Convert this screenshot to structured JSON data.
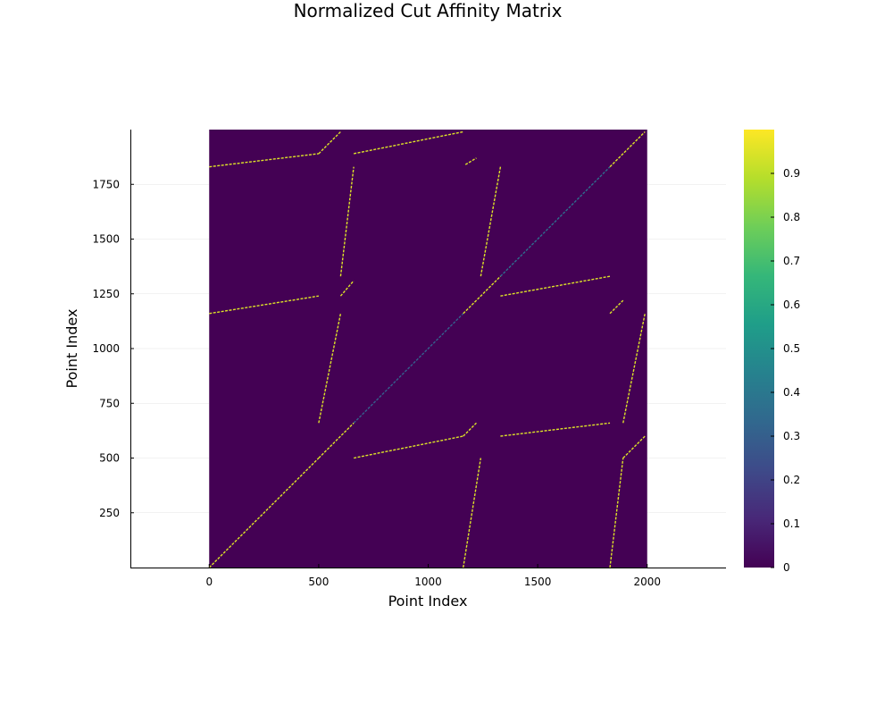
{
  "chart_data": {
    "type": "heatmap",
    "title": "Normalized Cut Affinity Matrix",
    "xlabel": "Point Index",
    "ylabel": "Point Index",
    "xlim": [
      -360,
      2360
    ],
    "ylim": [
      0,
      2000
    ],
    "matrix_extent": {
      "x": [
        0,
        2000
      ],
      "y": [
        0,
        2000
      ]
    },
    "x_ticks": [
      0,
      500,
      1000,
      1500,
      2000
    ],
    "x_tick_labels": [
      "0",
      "500",
      "1000",
      "1500",
      "2000"
    ],
    "y_ticks": [
      250,
      500,
      750,
      1000,
      1250,
      1500,
      1750
    ],
    "y_tick_labels": [
      "250",
      "500",
      "750",
      "1000",
      "1250",
      "1500",
      "1750"
    ],
    "grid": true,
    "colormap": "viridis",
    "colormap_stops": [
      "#440154",
      "#482878",
      "#3e4a89",
      "#31688e",
      "#26828e",
      "#1f9e89",
      "#35b779",
      "#6ece58",
      "#b5de2b",
      "#fde725"
    ],
    "colorbar": {
      "range": [
        0,
        1
      ],
      "ticks": [
        0,
        0.1,
        0.2,
        0.3,
        0.4,
        0.5,
        0.6,
        0.7,
        0.8,
        0.9
      ],
      "tick_labels": [
        "0",
        "0.1",
        "0.2",
        "0.3",
        "0.4",
        "0.5",
        "0.6",
        "0.7",
        "0.8",
        "0.9"
      ]
    },
    "background_value": 0,
    "segments": [
      {
        "from": [
          0,
          0
        ],
        "to": [
          500,
          500
        ],
        "value": 0.95
      },
      {
        "from": [
          500,
          500
        ],
        "to": [
          660,
          660
        ],
        "value": 0.95
      },
      {
        "from": [
          660,
          660
        ],
        "to": [
          1160,
          1160
        ],
        "value": 0.3
      },
      {
        "from": [
          1160,
          1160
        ],
        "to": [
          1330,
          1330
        ],
        "value": 0.95
      },
      {
        "from": [
          1330,
          1330
        ],
        "to": [
          1830,
          1830
        ],
        "value": 0.35
      },
      {
        "from": [
          1830,
          1830
        ],
        "to": [
          1990,
          1990
        ],
        "value": 0.95
      },
      {
        "from": [
          0,
          1830
        ],
        "to": [
          500,
          1890
        ],
        "value": 0.95
      },
      {
        "from": [
          500,
          1890
        ],
        "to": [
          600,
          1990
        ],
        "value": 0.95
      },
      {
        "from": [
          660,
          1890
        ],
        "to": [
          1160,
          1990
        ],
        "value": 0.95
      },
      {
        "from": [
          1170,
          1840
        ],
        "to": [
          1220,
          1870
        ],
        "value": 0.95
      },
      {
        "from": [
          0,
          1160
        ],
        "to": [
          500,
          1240
        ],
        "value": 0.95
      },
      {
        "from": [
          600,
          1240
        ],
        "to": [
          660,
          1310
        ],
        "value": 0.95
      },
      {
        "from": [
          1330,
          1240
        ],
        "to": [
          1830,
          1330
        ],
        "value": 0.95
      },
      {
        "from": [
          1830,
          1160
        ],
        "to": [
          1890,
          1220
        ],
        "value": 0.95
      },
      {
        "from": [
          660,
          500
        ],
        "to": [
          1160,
          600
        ],
        "value": 0.95
      },
      {
        "from": [
          1160,
          600
        ],
        "to": [
          1220,
          660
        ],
        "value": 0.95
      },
      {
        "from": [
          1330,
          600
        ],
        "to": [
          1830,
          660
        ],
        "value": 0.95
      },
      {
        "from": [
          1830,
          0
        ],
        "to": [
          1890,
          500
        ],
        "value": 0.95
      },
      {
        "from": [
          1890,
          500
        ],
        "to": [
          1990,
          600
        ],
        "value": 0.95
      },
      {
        "from": [
          1890,
          660
        ],
        "to": [
          1990,
          1160
        ],
        "value": 0.95
      },
      {
        "from": [
          500,
          660
        ],
        "to": [
          600,
          1160
        ],
        "value": 0.95
      },
      {
        "from": [
          600,
          1330
        ],
        "to": [
          660,
          1830
        ],
        "value": 0.95
      },
      {
        "from": [
          1160,
          0
        ],
        "to": [
          1240,
          500
        ],
        "value": 0.95
      },
      {
        "from": [
          1240,
          1330
        ],
        "to": [
          1330,
          1830
        ],
        "value": 0.95
      }
    ]
  }
}
